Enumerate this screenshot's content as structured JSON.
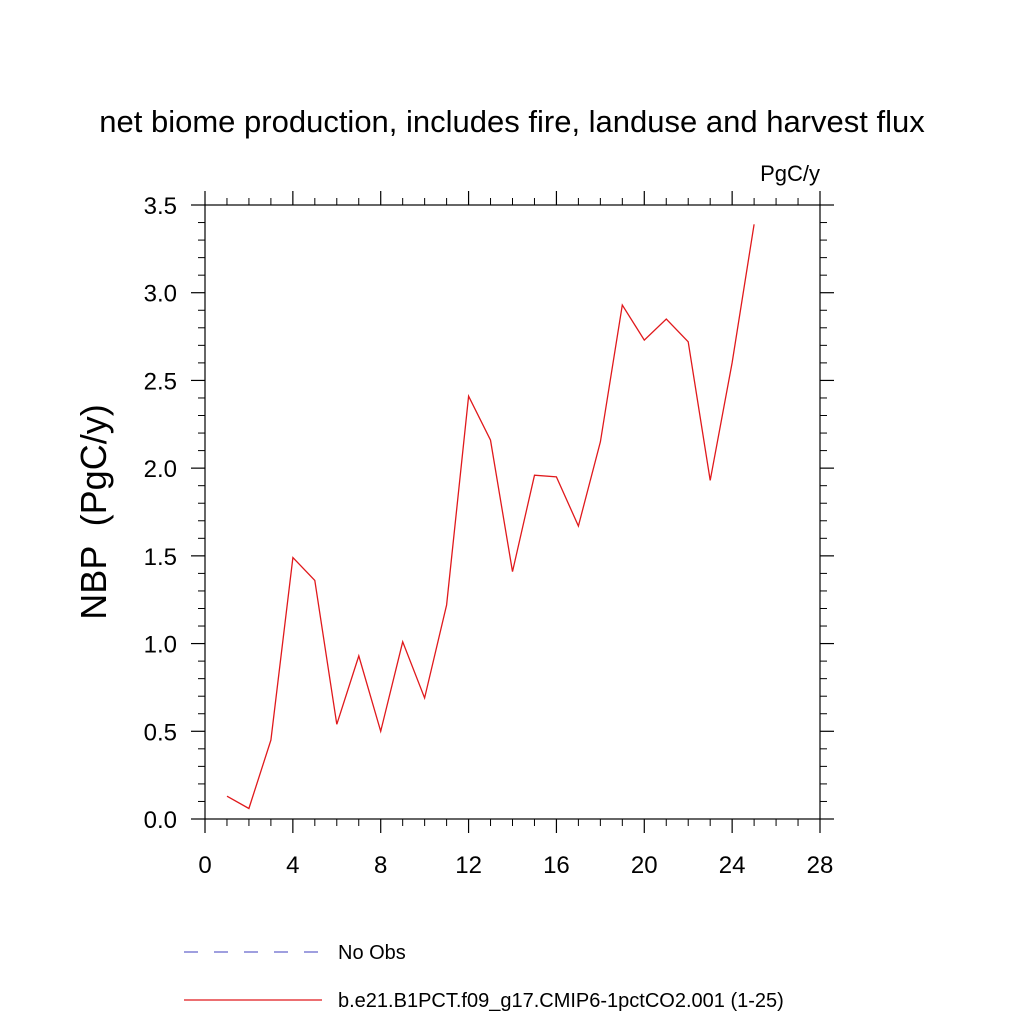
{
  "chart_data": {
    "type": "line",
    "title": "net biome production, includes fire, landuse and harvest flux",
    "units_label": "PgC/y",
    "ylabel": "NBP  (PgC/y)",
    "xlabel": "",
    "xlim": [
      0,
      28
    ],
    "ylim": [
      0.0,
      3.5
    ],
    "x_ticks": [
      0,
      4,
      8,
      12,
      16,
      20,
      24,
      28
    ],
    "x_tick_labels": [
      "0",
      "4",
      "8",
      "12",
      "16",
      "20",
      "24",
      "28"
    ],
    "y_ticks": [
      0.0,
      0.5,
      1.0,
      1.5,
      2.0,
      2.5,
      3.0,
      3.5
    ],
    "y_tick_labels": [
      "0.0",
      "0.5",
      "1.0",
      "1.5",
      "2.0",
      "2.5",
      "3.0",
      "3.5"
    ],
    "grid": false,
    "legend_position": "bottom",
    "series": [
      {
        "name": "No Obs",
        "color": "#6666cc",
        "dash": "dashed",
        "x": [],
        "values": []
      },
      {
        "name": "b.e21.B1PCT.f09_g17.CMIP6-1pctCO2.001 (1-25)",
        "color": "#e0191c",
        "dash": "solid",
        "x": [
          1,
          2,
          3,
          4,
          5,
          6,
          7,
          8,
          9,
          10,
          11,
          12,
          13,
          14,
          15,
          16,
          17,
          18,
          19,
          20,
          21,
          22,
          23,
          24,
          25
        ],
        "values": [
          0.13,
          0.06,
          0.45,
          1.49,
          1.36,
          0.54,
          0.93,
          0.5,
          1.01,
          0.69,
          1.22,
          2.41,
          2.16,
          1.41,
          1.96,
          1.95,
          1.67,
          2.15,
          2.93,
          2.73,
          2.85,
          2.72,
          1.93,
          2.6,
          3.39
        ]
      }
    ]
  }
}
